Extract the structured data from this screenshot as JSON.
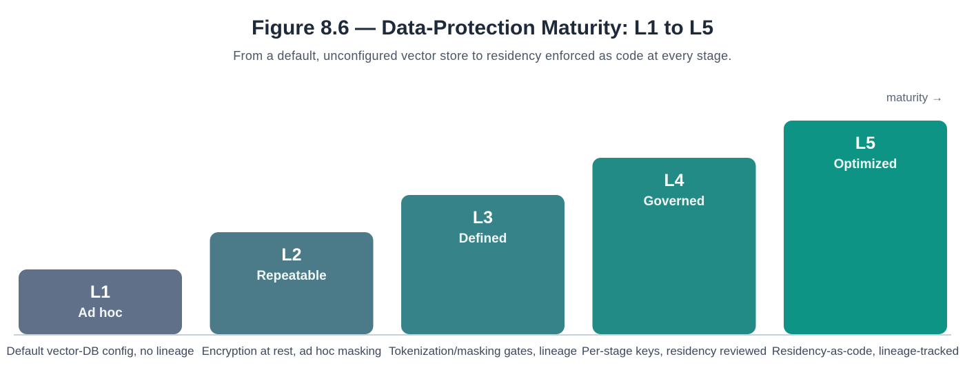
{
  "title": "Figure 8.6 — Data-Protection Maturity: L1 to L5",
  "subtitle": "From a default, unconfigured vector store to residency enforced as code at every stage.",
  "axis_hint": "maturity →",
  "chart_data": {
    "type": "bar",
    "title": "Figure 8.6 — Data-Protection Maturity: L1 to L5",
    "xlabel": "",
    "ylabel": "",
    "grid": false,
    "categories": [
      "L1",
      "L2",
      "L3",
      "L4",
      "L5"
    ],
    "names": [
      "Ad hoc",
      "Repeatable",
      "Defined",
      "Governed",
      "Optimized"
    ],
    "descriptions": [
      "Default vector-DB config, no lineage",
      "Encryption at rest, ad hoc masking",
      "Tokenization/masking gates, lineage",
      "Per-stage keys, residency reviewed",
      "Residency-as-code, lineage-tracked"
    ],
    "values": [
      1,
      2,
      3,
      4,
      5
    ],
    "colors": [
      "#607089",
      "#4b7b88",
      "#36838a",
      "#228b86",
      "#0d9484"
    ],
    "axis_color": "#c5d2dc"
  }
}
